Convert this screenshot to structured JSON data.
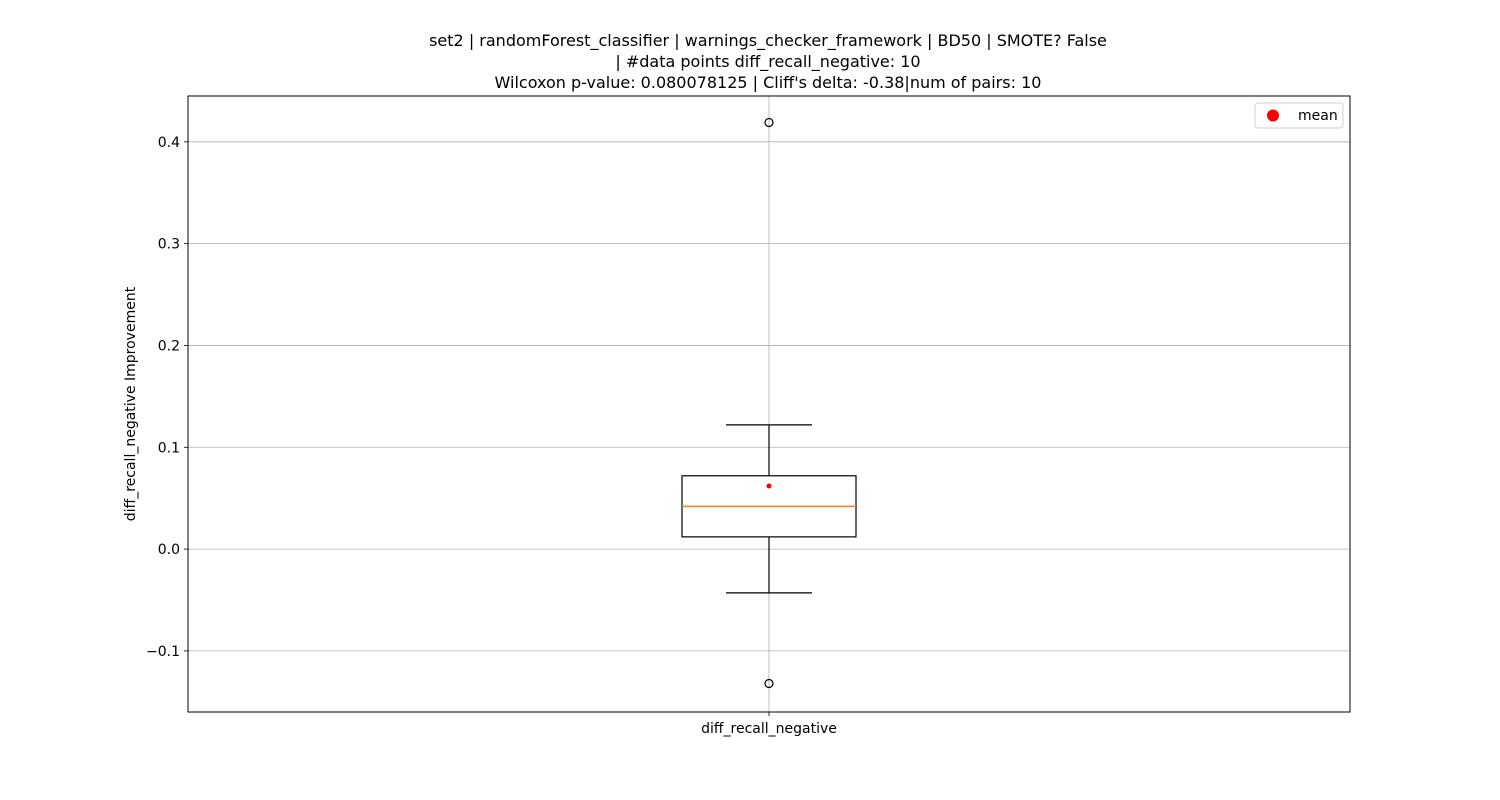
{
  "chart_data": {
    "type": "box",
    "title_lines": [
      "set2 | randomForest_classifier | warnings_checker_framework | BD50 | SMOTE? False",
      "| #data points diff_recall_negative: 10",
      "Wilcoxon p-value: 0.080078125 | Cliff's delta: -0.38|num of pairs: 10"
    ],
    "ylabel": "diff_recall_negative Improvement",
    "categories": [
      "diff_recall_negative"
    ],
    "ylim": [
      -0.16,
      0.445
    ],
    "yticks": [
      -0.1,
      0.0,
      0.1,
      0.2,
      0.3,
      0.4
    ],
    "ytick_labels": [
      "−0.1",
      "0.0",
      "0.1",
      "0.2",
      "0.3",
      "0.4"
    ],
    "grid": true,
    "legend": {
      "position": "top-right",
      "entries": [
        "mean"
      ]
    },
    "boxes": [
      {
        "name": "diff_recall_negative",
        "whisker_low": -0.043,
        "q1": 0.012,
        "median": 0.042,
        "q3": 0.072,
        "whisker_high": 0.122,
        "mean": 0.062,
        "outliers": [
          0.419,
          -0.132
        ]
      }
    ],
    "colors": {
      "median": "#ff7f0e",
      "mean": "#ff0000",
      "grid": "#b0b0b0",
      "box": "#000000"
    }
  }
}
